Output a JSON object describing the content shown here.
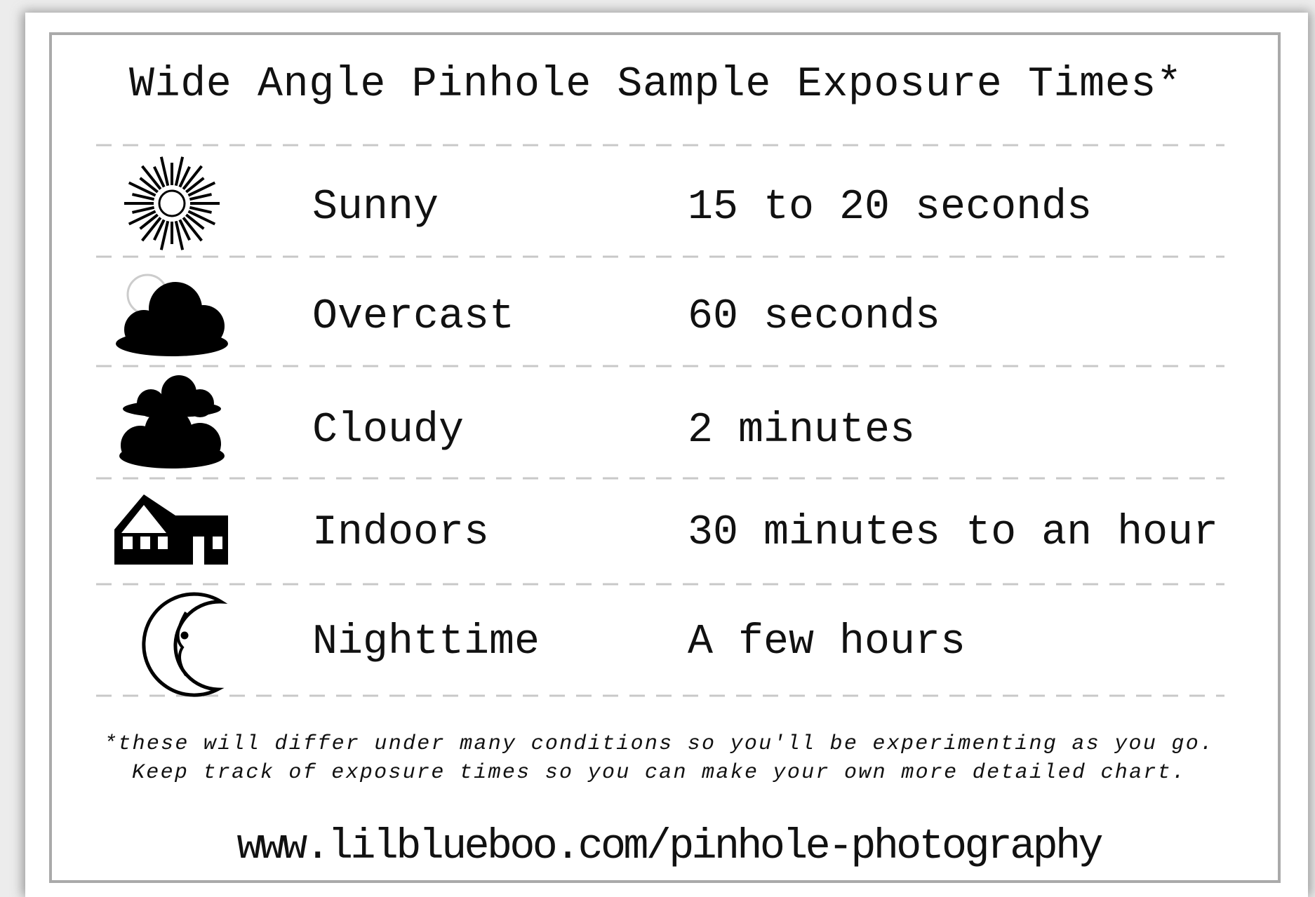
{
  "header": {
    "title": "Wide Angle Pinhole Sample Exposure Times*"
  },
  "table": {
    "rows": [
      [
        "Sunny",
        "15 to 20 seconds"
      ],
      [
        "Overcast",
        "60 seconds"
      ],
      [
        "Cloudy",
        "2 minutes"
      ],
      [
        "Indoors",
        "30 minutes to an hour"
      ],
      [
        "Nighttime",
        "A few hours"
      ]
    ]
  },
  "footnote": [
    "*these will differ under many conditions so you'll be experimenting as you go.",
    "Keep track of exposure times so you can make your own more detailed chart."
  ],
  "footer": {
    "url": "www.lilblueboo.com/pinhole-photography"
  }
}
